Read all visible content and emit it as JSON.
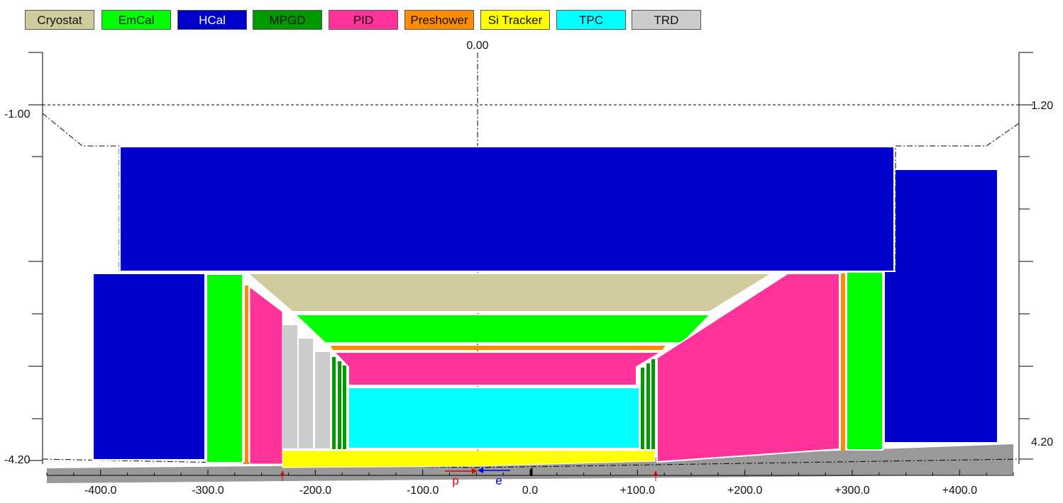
{
  "legend": [
    {
      "label": "Cryostat",
      "color": "#cfcb9c"
    },
    {
      "label": "EmCal",
      "color": "#00ff00"
    },
    {
      "label": "HCal",
      "color": "#0000cc",
      "text_color": "#ffffff"
    },
    {
      "label": "MPGD",
      "color": "#009900"
    },
    {
      "label": "PID",
      "color": "#ff3399"
    },
    {
      "label": "Preshower",
      "color": "#ff8c00"
    },
    {
      "label": "Si Tracker",
      "color": "#ffff00"
    },
    {
      "label": "TPC",
      "color": "#00ffff"
    },
    {
      "label": "TRD",
      "color": "#cccccc"
    }
  ],
  "axes": {
    "top_center_label": "0.00",
    "left_labels": [
      "-1.00",
      "-4.20"
    ],
    "right_labels": [
      "1.20",
      "4.20"
    ],
    "x_tick_labels": [
      "-400.0",
      "-300.0",
      "-200.0",
      "-100.0",
      "0.0",
      "+100.0",
      "+200.0",
      "+300.0",
      "+400.0"
    ],
    "x_range": [
      -450,
      450
    ]
  },
  "beams": {
    "proton_label": "p",
    "electron_label": "e",
    "proton_color": "#dd0000",
    "electron_color": "#0000ee"
  }
}
